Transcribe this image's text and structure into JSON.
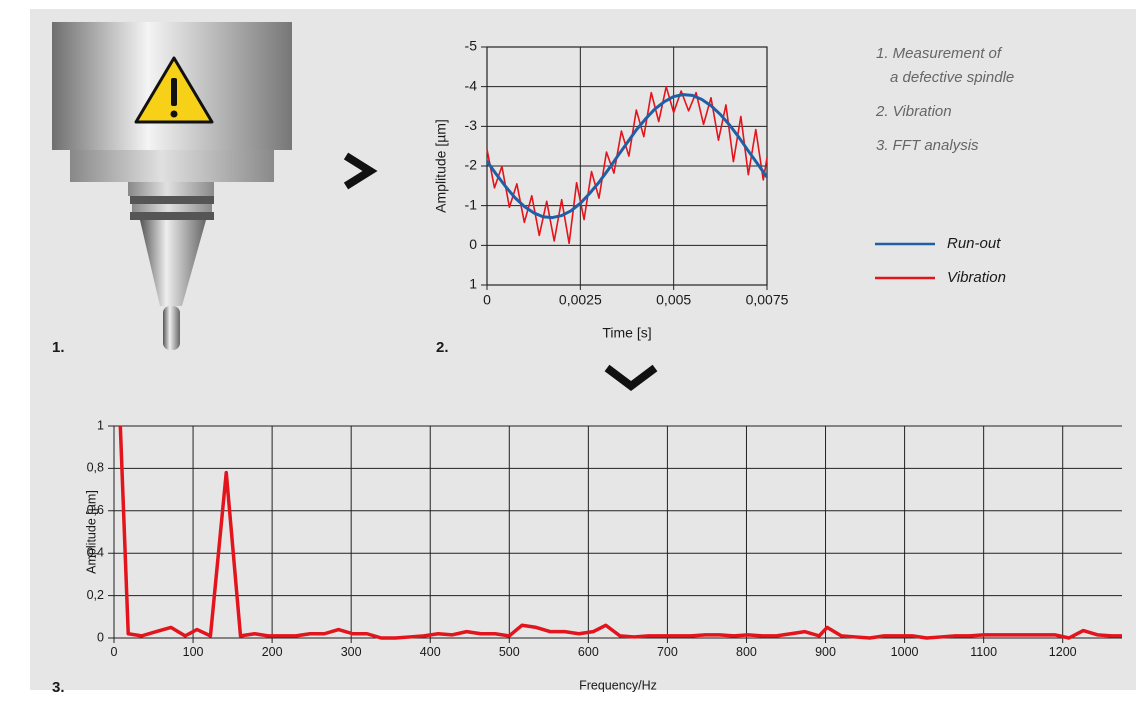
{
  "panel_labels": [
    "1.",
    "2.",
    "3."
  ],
  "notes": [
    "1. Measurement of",
    "a defective spindle",
    "2. Vibration",
    "3. FFT analysis"
  ],
  "chart_data": [
    {
      "type": "line",
      "ylabel": "Amplitude [µm]",
      "xlabel": "Time [s]",
      "xlim": [
        0,
        0.0075
      ],
      "ylim": [
        1,
        -5
      ],
      "xticks": [
        0,
        {
          "value": 0.0025,
          "label": "0,0025"
        },
        {
          "value": 0.005,
          "label": "0,005"
        },
        {
          "value": 0.0075,
          "label": "0,0075"
        }
      ],
      "yticks": [
        -5,
        -4,
        -3,
        -2,
        -1,
        0,
        1
      ],
      "grid": true,
      "series": [
        {
          "name": "Run-out",
          "color": "#1f5fa6",
          "x": [
            0,
            0.00025,
            0.0005,
            0.00075,
            0.001,
            0.00125,
            0.0015,
            0.00175,
            0.002,
            0.00225,
            0.0025,
            0.00275,
            0.003,
            0.00325,
            0.0035,
            0.00375,
            0.004,
            0.00425,
            0.0045,
            0.00475,
            0.005,
            0.00525,
            0.0055,
            0.00575,
            0.006,
            0.00625,
            0.0065,
            0.00675,
            0.007,
            0.00725,
            0.0075
          ],
          "values": [
            -2.12,
            -1.79,
            -1.48,
            -1.2,
            -0.98,
            -0.82,
            -0.72,
            -0.7,
            -0.75,
            -0.87,
            -1.06,
            -1.31,
            -1.59,
            -1.91,
            -2.25,
            -2.58,
            -2.91,
            -3.19,
            -3.44,
            -3.62,
            -3.75,
            -3.8,
            -3.78,
            -3.68,
            -3.52,
            -3.3,
            -3.03,
            -2.72,
            -2.38,
            -2.05,
            -1.72
          ]
        },
        {
          "name": "Vibration",
          "color": "#e3141b",
          "x": [
            0,
            0.0002,
            0.0004,
            0.0006,
            0.0008,
            0.001,
            0.0012,
            0.0014,
            0.0016,
            0.0018,
            0.002,
            0.0022,
            0.0024,
            0.0026,
            0.0028,
            0.003,
            0.0032,
            0.0034,
            0.0036,
            0.0038,
            0.004,
            0.0042,
            0.0044,
            0.0046,
            0.0048,
            0.005,
            0.0052,
            0.0054,
            0.0056,
            0.0058,
            0.006,
            0.0062,
            0.0064,
            0.0066,
            0.0068,
            0.007,
            0.0072,
            0.0074,
            0.0075
          ],
          "values": [
            -2.42,
            -1.45,
            -1.99,
            -0.96,
            -1.55,
            -0.58,
            -1.25,
            -0.25,
            -1.11,
            -0.11,
            -1.15,
            -0.05,
            -1.58,
            -0.65,
            -1.86,
            -1.19,
            -2.35,
            -1.82,
            -2.88,
            -2.25,
            -3.41,
            -2.74,
            -3.85,
            -3.12,
            -4.0,
            -3.35,
            -3.89,
            -3.39,
            -3.85,
            -3.05,
            -3.72,
            -2.65,
            -3.54,
            -2.11,
            -3.25,
            -1.78,
            -2.92,
            -1.65,
            -2.2
          ]
        }
      ]
    },
    {
      "type": "line",
      "ylabel": "Amplitude [µm]",
      "xlabel": "Frequency/Hz",
      "xlim": [
        0,
        1275
      ],
      "ylim": [
        0,
        1
      ],
      "xticks": [
        0,
        100,
        200,
        300,
        400,
        500,
        600,
        700,
        800,
        900,
        1000,
        1100,
        1200
      ],
      "yticks": [
        0,
        {
          "value": 0.2,
          "label": "0,2"
        },
        {
          "value": 0.4,
          "label": "0,4"
        },
        {
          "value": 0.6,
          "label": "0,6"
        },
        {
          "value": 0.8,
          "label": "0,8"
        },
        1
      ],
      "grid": true,
      "color": "#e3141b",
      "x": [
        8,
        18,
        35,
        53,
        72,
        90,
        105,
        122,
        142,
        160,
        178,
        195,
        213,
        230,
        248,
        266,
        284,
        302,
        320,
        338,
        356,
        374,
        392,
        410,
        428,
        446,
        464,
        482,
        500,
        516,
        534,
        552,
        570,
        588,
        606,
        622,
        640,
        658,
        676,
        694,
        712,
        730,
        748,
        766,
        784,
        802,
        820,
        838,
        856,
        874,
        892,
        902,
        920,
        938,
        956,
        974,
        992,
        1010,
        1028,
        1046,
        1064,
        1082,
        1100,
        1118,
        1136,
        1154,
        1172,
        1190,
        1208,
        1226,
        1244,
        1262,
        1275
      ],
      "values": [
        1.0,
        0.02,
        0.01,
        0.03,
        0.05,
        0.01,
        0.04,
        0.01,
        0.78,
        0.01,
        0.02,
        0.01,
        0.01,
        0.01,
        0.02,
        0.02,
        0.04,
        0.02,
        0.02,
        0.0,
        0.0,
        0.005,
        0.01,
        0.02,
        0.015,
        0.03,
        0.02,
        0.02,
        0.01,
        0.06,
        0.05,
        0.03,
        0.03,
        0.02,
        0.03,
        0.06,
        0.01,
        0.005,
        0.01,
        0.01,
        0.01,
        0.01,
        0.015,
        0.015,
        0.01,
        0.015,
        0.01,
        0.01,
        0.02,
        0.03,
        0.01,
        0.05,
        0.01,
        0.005,
        0.0,
        0.01,
        0.01,
        0.01,
        0.0,
        0.005,
        0.01,
        0.01,
        0.015,
        0.015,
        0.015,
        0.015,
        0.015,
        0.015,
        0.0,
        0.035,
        0.015,
        0.01,
        0.01
      ]
    }
  ]
}
